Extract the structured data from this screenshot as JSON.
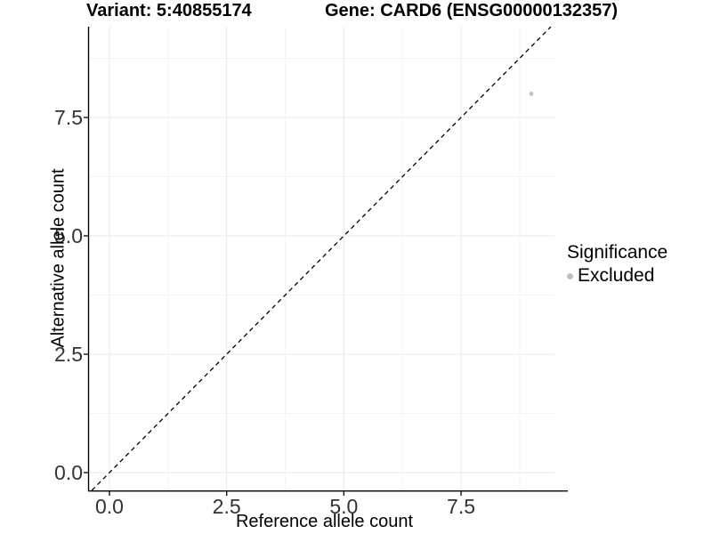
{
  "figure": {
    "title_left": "Variant: 5:40855174",
    "title_right": "Gene: CARD6 (ENSG00000132357)"
  },
  "chart_data": {
    "type": "scatter",
    "title_left": "Variant: 5:40855174",
    "title_right": "Gene: CARD6 (ENSG00000132357)",
    "xlabel": "Reference allele count",
    "ylabel": "Alternative allele count",
    "xlim": [
      -0.46,
      9.63
    ],
    "ylim": [
      -0.38,
      9.42
    ],
    "x_tick_labels": [
      "0.0",
      "2.5",
      "5.0",
      "7.5"
    ],
    "x_tick_values": [
      0,
      2.5,
      5,
      7.5
    ],
    "y_tick_labels": [
      "0.0",
      "2.5",
      "5.0",
      "7.5"
    ],
    "y_tick_values": [
      0,
      2.5,
      5,
      7.5
    ],
    "x_minor_tick_values": [
      1.25,
      3.75,
      6.25,
      8.75
    ],
    "y_minor_tick_values": [
      1.25,
      3.75,
      6.25,
      8.75
    ],
    "grid": true,
    "reference_line": {
      "type": "identity",
      "equation": "y = x",
      "style": "dashed",
      "color": "#000000"
    },
    "series": [
      {
        "name": "Excluded",
        "color": "#bfbfbf",
        "points": [
          {
            "x": 9,
            "y": 8
          }
        ]
      }
    ],
    "legend": {
      "position": "right",
      "title": "Significance",
      "items": [
        {
          "label": "Excluded",
          "color": "#bfbfbf"
        }
      ]
    }
  },
  "colors": {
    "background": "#ffffff",
    "axis_line": "#000000",
    "tick_text": "#333333",
    "grid_major": "#e8e8e8",
    "grid_minor": "#f4f4f4",
    "point": "#bfbfbf"
  }
}
